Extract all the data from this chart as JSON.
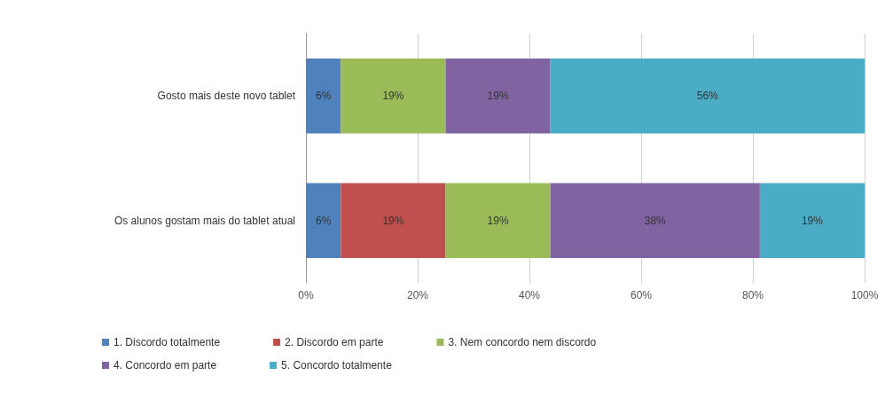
{
  "chart_data": {
    "type": "bar",
    "orientation": "horizontal",
    "stacked": true,
    "categories": [
      "Gosto mais deste novo tablet",
      "Os alunos gostam mais do tablet atual"
    ],
    "series": [
      {
        "name": "1. Discordo totalmente",
        "color": "#4f81bd",
        "values": [
          6.25,
          6.25
        ],
        "value_labels": [
          "6%",
          "6%"
        ]
      },
      {
        "name": "2. Discordo em parte",
        "color": "#c0504d",
        "values": [
          0,
          18.75
        ],
        "value_labels": [
          null,
          "19%"
        ]
      },
      {
        "name": "3. Nem concordo nem discordo",
        "color": "#9bbb59",
        "values": [
          18.75,
          18.75
        ],
        "value_labels": [
          "19%",
          "19%"
        ]
      },
      {
        "name": "4. Concordo em parte",
        "color": "#8064a2",
        "values": [
          18.75,
          37.5
        ],
        "value_labels": [
          "19%",
          "38%"
        ]
      },
      {
        "name": "5. Concordo totalmente",
        "color": "#4bacc6",
        "values": [
          56.25,
          18.75
        ],
        "value_labels": [
          "56%",
          "19%"
        ]
      }
    ],
    "xlim": [
      0,
      100
    ],
    "xticks": [
      {
        "value": 0,
        "label": "0%"
      },
      {
        "value": 20,
        "label": "20%"
      },
      {
        "value": 40,
        "label": "40%"
      },
      {
        "value": 60,
        "label": "60%"
      },
      {
        "value": 80,
        "label": "80%"
      },
      {
        "value": 100,
        "label": "100%"
      }
    ],
    "grid": "x",
    "legend": "bottom"
  }
}
